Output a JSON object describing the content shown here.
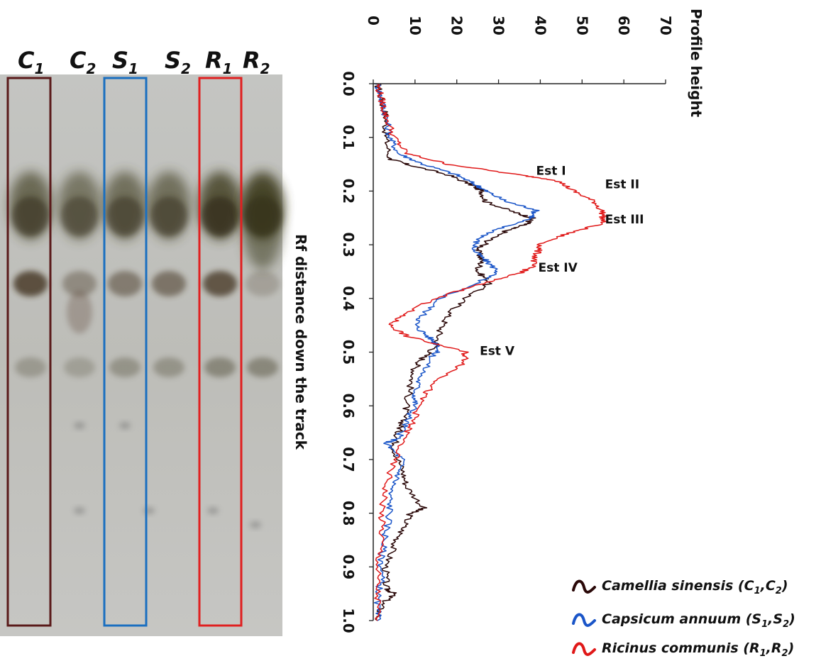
{
  "gel": {
    "lanes": [
      {
        "main": "C",
        "sub": "1",
        "boxed": true,
        "box_color": "#5a1a1a"
      },
      {
        "main": "C",
        "sub": "2",
        "boxed": false
      },
      {
        "main": "S",
        "sub": "1",
        "boxed": true,
        "box_color": "#1a6fc0"
      },
      {
        "main": "S",
        "sub": "2",
        "boxed": false
      },
      {
        "main": "R",
        "sub": "1",
        "boxed": true,
        "box_color": "#e02020"
      },
      {
        "main": "R",
        "sub": "2",
        "boxed": false
      }
    ]
  },
  "chart_data": {
    "type": "line",
    "orientation": "rotated: Rf runs downward, profile height runs rightward",
    "xlabel": "Profile height",
    "ylabel": "Rf distance down the track",
    "xlim": [
      0,
      70
    ],
    "ylim": [
      0.0,
      1.0
    ],
    "x_ticks": [
      "0",
      "10",
      "20",
      "30",
      "40",
      "50",
      "60",
      "70"
    ],
    "y_ticks": [
      "0.0",
      "0.1",
      "0.2",
      "0.3",
      "0.4",
      "0.5",
      "0.6",
      "0.7",
      "0.8",
      "0.9",
      "1.0"
    ],
    "grid": false,
    "series": [
      {
        "name": "Camellia sinensis",
        "sub_a": "1",
        "sub_b": "2",
        "main_letter": "C",
        "color": "#2a0808",
        "rf": [
          0.0,
          0.03,
          0.06,
          0.1,
          0.14,
          0.15,
          0.17,
          0.19,
          0.2,
          0.22,
          0.24,
          0.25,
          0.26,
          0.27,
          0.29,
          0.31,
          0.33,
          0.35,
          0.37,
          0.4,
          0.43,
          0.46,
          0.49,
          0.51,
          0.53,
          0.56,
          0.6,
          0.63,
          0.65,
          0.68,
          0.72,
          0.75,
          0.79,
          0.8,
          0.83,
          0.86,
          0.9,
          0.94,
          0.95,
          0.97,
          1.0
        ],
        "height": [
          1,
          2,
          3,
          3,
          4,
          8,
          18,
          24,
          26,
          27,
          34,
          38,
          37,
          33,
          28,
          25,
          26,
          25,
          28,
          22,
          18,
          16,
          15,
          12,
          10,
          9,
          8,
          7,
          6,
          5,
          7,
          8,
          12,
          9,
          7,
          5,
          3,
          3,
          5,
          2,
          1
        ]
      },
      {
        "name": "Capsicum annuum",
        "sub_a": "1",
        "sub_b": "2",
        "main_letter": "S",
        "color": "#1a55c8",
        "rf": [
          0.0,
          0.03,
          0.06,
          0.1,
          0.13,
          0.15,
          0.17,
          0.19,
          0.2,
          0.22,
          0.235,
          0.25,
          0.27,
          0.29,
          0.31,
          0.33,
          0.35,
          0.37,
          0.4,
          0.43,
          0.45,
          0.47,
          0.49,
          0.51,
          0.55,
          0.58,
          0.6,
          0.63,
          0.66,
          0.67,
          0.7,
          0.73,
          0.76,
          0.8,
          0.84,
          0.88,
          0.92,
          0.96,
          1.0
        ],
        "height": [
          1,
          2,
          3,
          4,
          6,
          12,
          20,
          25,
          27,
          32,
          39,
          38,
          30,
          25,
          24,
          27,
          30,
          25,
          16,
          12,
          10,
          13,
          16,
          14,
          11,
          10,
          10,
          8,
          6,
          3,
          7,
          6,
          4,
          4,
          3,
          2,
          2,
          1,
          1
        ]
      },
      {
        "name": "Ricinus communis",
        "sub_a": "1",
        "sub_b": "2",
        "main_letter": "R",
        "color": "#e01818",
        "rf": [
          0.0,
          0.03,
          0.06,
          0.1,
          0.13,
          0.15,
          0.17,
          0.18,
          0.2,
          0.22,
          0.24,
          0.26,
          0.28,
          0.3,
          0.32,
          0.34,
          0.35,
          0.37,
          0.4,
          0.43,
          0.45,
          0.47,
          0.5,
          0.52,
          0.55,
          0.58,
          0.62,
          0.65,
          0.7,
          0.75,
          0.8,
          0.85,
          0.9,
          0.95,
          1.0
        ],
        "height": [
          1,
          2,
          3,
          5,
          8,
          18,
          35,
          44,
          48,
          53,
          55,
          55,
          46,
          40,
          39,
          38,
          36,
          27,
          15,
          7,
          4,
          8,
          22,
          22,
          16,
          12,
          10,
          8,
          5,
          3,
          2,
          2,
          1,
          1,
          1
        ]
      }
    ],
    "annotations": [
      {
        "text": "Est I",
        "x": 39,
        "y": 0.17
      },
      {
        "text": "Est II",
        "x": 55.5,
        "y": 0.195
      },
      {
        "text": "Est III",
        "x": 55.5,
        "y": 0.26
      },
      {
        "text": "Est IV",
        "x": 39.5,
        "y": 0.35
      },
      {
        "text": "Est V",
        "x": 25.5,
        "y": 0.505
      }
    ]
  }
}
